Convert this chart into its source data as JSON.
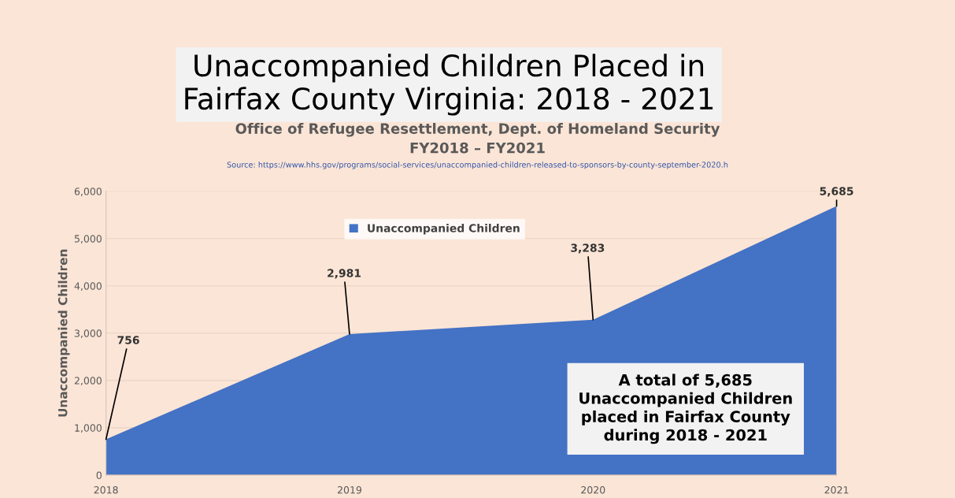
{
  "chart_data": {
    "type": "area",
    "title": "Unaccompanied Children Placed in\nFairfax County Virginia: 2018 - 2021",
    "subtitle": "Office of Refugee Resettlement, Dept. of Homeland Security\nFY2018 – FY2021",
    "ylabel": "Unaccompanied Children",
    "categories": [
      "2018",
      "2019",
      "2020",
      "2021"
    ],
    "series": [
      {
        "name": "Unaccompanied Children",
        "color": "#4472c4",
        "values": [
          756,
          2981,
          3283,
          5685
        ],
        "value_labels": [
          "756",
          "2,981",
          "3,283",
          "5,685"
        ]
      }
    ],
    "ylim": [
      0,
      6000
    ],
    "yticks": [
      0,
      {
        "value": 1000,
        "label": "1,000"
      },
      {
        "value": 2000,
        "label": "2,000"
      },
      {
        "value": 3000,
        "label": "3,000"
      },
      {
        "value": 4000,
        "label": "4,000"
      },
      {
        "value": 5000,
        "label": "5,000"
      },
      {
        "value": 6000,
        "label": "6,000"
      }
    ],
    "grid": "y",
    "legend": "top",
    "annotations": [
      "Source: https://www.hhs.gov/programs/social-services/unaccompanied-children-released-to-sponsors-by-county-september-2020.h",
      "A total of 5,685\nUnaccompanied Children\nplaced in Fairfax County\nduring 2018 - 2021"
    ]
  }
}
